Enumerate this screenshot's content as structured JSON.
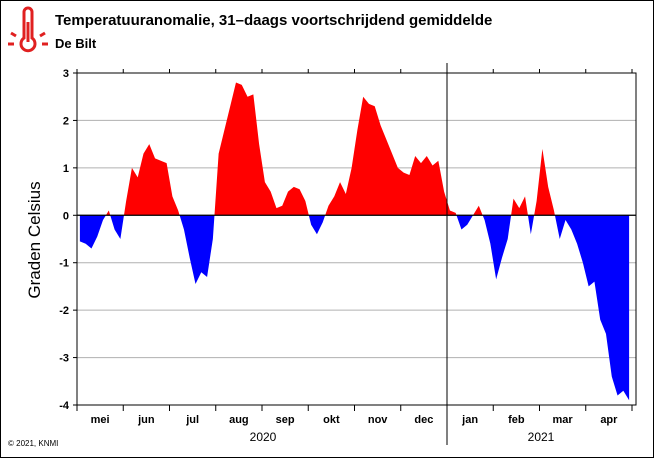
{
  "chart_data": {
    "type": "area",
    "title": "Temperatuuranomalie, 31–daags voortschrijdend gemiddelde",
    "subtitle": "De Bilt",
    "ylabel": "Graden Celsius",
    "credit": "© 2021, KNMI",
    "annotations": [
      "2020",
      "2021"
    ],
    "pos_color": "#ff0000",
    "neg_color": "#0000ff",
    "grid": true,
    "ylim": [
      -4,
      3
    ],
    "yticks": [
      -4,
      -3,
      -2,
      -1,
      0,
      1,
      2,
      3
    ],
    "categories": [
      null,
      null,
      null,
      null,
      "mei",
      null,
      null,
      null,
      null,
      null,
      null,
      null,
      "jun",
      null,
      null,
      null,
      null,
      null,
      null,
      null,
      "jul",
      null,
      null,
      null,
      null,
      null,
      null,
      null,
      "aug",
      null,
      null,
      null,
      null,
      null,
      null,
      null,
      "sep",
      null,
      null,
      null,
      null,
      null,
      null,
      null,
      "okt",
      null,
      null,
      null,
      null,
      null,
      null,
      null,
      "nov",
      null,
      null,
      null,
      null,
      null,
      null,
      null,
      "dec",
      null,
      null,
      null,
      null,
      null,
      null,
      null,
      "jan",
      null,
      null,
      null,
      null,
      null,
      null,
      null,
      "feb",
      null,
      null,
      null,
      null,
      null,
      null,
      null,
      "mar",
      null,
      null,
      null,
      null,
      null,
      null,
      null,
      "apr",
      null,
      null,
      null
    ],
    "values": [
      -0.55,
      -0.6,
      -0.7,
      -0.45,
      -0.1,
      0.1,
      -0.3,
      -0.5,
      0.3,
      1.0,
      0.8,
      1.3,
      1.5,
      1.2,
      1.15,
      1.1,
      0.4,
      0.1,
      -0.3,
      -0.9,
      -1.45,
      -1.2,
      -1.3,
      -0.5,
      1.3,
      1.8,
      2.3,
      2.8,
      2.75,
      2.5,
      2.55,
      1.5,
      0.7,
      0.5,
      0.15,
      0.2,
      0.5,
      0.6,
      0.55,
      0.3,
      -0.2,
      -0.4,
      -0.15,
      0.2,
      0.4,
      0.7,
      0.45,
      1.0,
      1.8,
      2.5,
      2.35,
      2.3,
      1.9,
      1.6,
      1.3,
      1.0,
      0.9,
      0.85,
      1.25,
      1.1,
      1.25,
      1.05,
      1.15,
      0.5,
      0.1,
      0.05,
      -0.3,
      -0.2,
      0.0,
      0.2,
      -0.1,
      -0.6,
      -1.35,
      -0.9,
      -0.5,
      0.35,
      0.15,
      0.4,
      -0.4,
      0.3,
      1.4,
      0.6,
      0.1,
      -0.5,
      -0.1,
      -0.3,
      -0.6,
      -1.0,
      -1.5,
      -1.4,
      -2.2,
      -2.5,
      -3.4,
      -3.8,
      -3.7,
      -3.9
    ]
  }
}
